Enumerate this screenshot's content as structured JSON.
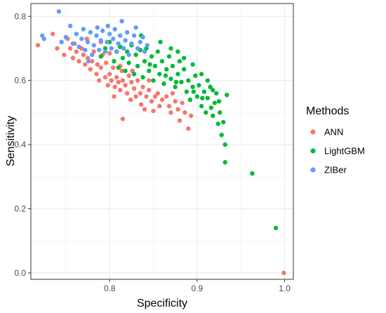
{
  "chart_data": {
    "type": "scatter",
    "title": "",
    "xlabel": "Specificity",
    "ylabel": "Sensitivity",
    "xlim": [
      0.71,
      1.01
    ],
    "ylim": [
      -0.02,
      0.84
    ],
    "x_ticks": [
      "0.8",
      "0.9",
      "1.0"
    ],
    "x_tick_values": [
      0.8,
      0.9,
      1.0
    ],
    "y_ticks": [
      "0.0",
      "0.2",
      "0.4",
      "0.6",
      "0.8"
    ],
    "y_tick_values": [
      0.0,
      0.2,
      0.4,
      0.6,
      0.8
    ],
    "grid": true,
    "legend": {
      "title": "Methods",
      "position": "right"
    },
    "series": [
      {
        "name": "ANN",
        "color": "#F8766D",
        "points": [
          [
            0.718,
            0.71
          ],
          [
            0.735,
            0.745
          ],
          [
            0.74,
            0.7
          ],
          [
            0.745,
            0.72
          ],
          [
            0.748,
            0.68
          ],
          [
            0.752,
            0.73
          ],
          [
            0.755,
            0.7
          ],
          [
            0.758,
            0.67
          ],
          [
            0.76,
            0.715
          ],
          [
            0.762,
            0.69
          ],
          [
            0.765,
            0.66
          ],
          [
            0.768,
            0.7
          ],
          [
            0.77,
            0.68
          ],
          [
            0.772,
            0.65
          ],
          [
            0.775,
            0.67
          ],
          [
            0.778,
            0.635
          ],
          [
            0.78,
            0.66
          ],
          [
            0.782,
            0.69
          ],
          [
            0.785,
            0.62
          ],
          [
            0.786,
            0.65
          ],
          [
            0.788,
            0.6
          ],
          [
            0.79,
            0.64
          ],
          [
            0.792,
            0.68
          ],
          [
            0.795,
            0.61
          ],
          [
            0.796,
            0.655
          ],
          [
            0.798,
            0.585
          ],
          [
            0.8,
            0.62
          ],
          [
            0.802,
            0.6
          ],
          [
            0.804,
            0.64
          ],
          [
            0.805,
            0.55
          ],
          [
            0.806,
            0.58
          ],
          [
            0.808,
            0.61
          ],
          [
            0.81,
            0.595
          ],
          [
            0.812,
            0.57
          ],
          [
            0.814,
            0.63
          ],
          [
            0.815,
            0.6
          ],
          [
            0.818,
            0.585
          ],
          [
            0.82,
            0.56
          ],
          [
            0.822,
            0.615
          ],
          [
            0.824,
            0.54
          ],
          [
            0.825,
            0.595
          ],
          [
            0.828,
            0.575
          ],
          [
            0.83,
            0.55
          ],
          [
            0.832,
            0.6
          ],
          [
            0.835,
            0.56
          ],
          [
            0.836,
            0.525
          ],
          [
            0.838,
            0.58
          ],
          [
            0.84,
            0.51
          ],
          [
            0.842,
            0.55
          ],
          [
            0.845,
            0.57
          ],
          [
            0.848,
            0.535
          ],
          [
            0.85,
            0.505
          ],
          [
            0.852,
            0.55
          ],
          [
            0.855,
            0.56
          ],
          [
            0.857,
            0.52
          ],
          [
            0.86,
            0.54
          ],
          [
            0.862,
            0.59
          ],
          [
            0.865,
            0.55
          ],
          [
            0.868,
            0.52
          ],
          [
            0.87,
            0.5
          ],
          [
            0.872,
            0.56
          ],
          [
            0.875,
            0.535
          ],
          [
            0.878,
            0.51
          ],
          [
            0.88,
            0.475
          ],
          [
            0.883,
            0.53
          ],
          [
            0.886,
            0.5
          ],
          [
            0.89,
            0.45
          ],
          [
            0.893,
            0.49
          ],
          [
            0.815,
            0.48
          ],
          [
            0.79,
            0.72
          ],
          [
            0.774,
            0.73
          ],
          [
            0.8,
            0.685
          ],
          [
            0.812,
            0.645
          ],
          [
            0.826,
            0.63
          ],
          [
            0.845,
            0.6
          ],
          [
            0.999,
            0.0
          ]
        ]
      },
      {
        "name": "LightGBM",
        "color": "#00BA38",
        "points": [
          [
            0.79,
            0.675
          ],
          [
            0.795,
            0.7
          ],
          [
            0.8,
            0.72
          ],
          [
            0.805,
            0.66
          ],
          [
            0.808,
            0.69
          ],
          [
            0.81,
            0.64
          ],
          [
            0.812,
            0.705
          ],
          [
            0.815,
            0.67
          ],
          [
            0.818,
            0.63
          ],
          [
            0.82,
            0.69
          ],
          [
            0.822,
            0.655
          ],
          [
            0.825,
            0.71
          ],
          [
            0.828,
            0.62
          ],
          [
            0.83,
            0.68
          ],
          [
            0.832,
            0.645
          ],
          [
            0.835,
            0.695
          ],
          [
            0.838,
            0.61
          ],
          [
            0.84,
            0.66
          ],
          [
            0.842,
            0.7
          ],
          [
            0.845,
            0.63
          ],
          [
            0.848,
            0.675
          ],
          [
            0.85,
            0.6
          ],
          [
            0.852,
            0.645
          ],
          [
            0.855,
            0.69
          ],
          [
            0.857,
            0.62
          ],
          [
            0.86,
            0.66
          ],
          [
            0.862,
            0.59
          ],
          [
            0.865,
            0.635
          ],
          [
            0.868,
            0.675
          ],
          [
            0.87,
            0.605
          ],
          [
            0.872,
            0.645
          ],
          [
            0.875,
            0.58
          ],
          [
            0.878,
            0.62
          ],
          [
            0.88,
            0.66
          ],
          [
            0.882,
            0.595
          ],
          [
            0.885,
            0.635
          ],
          [
            0.888,
            0.565
          ],
          [
            0.89,
            0.6
          ],
          [
            0.892,
            0.54
          ],
          [
            0.895,
            0.58
          ],
          [
            0.898,
            0.615
          ],
          [
            0.9,
            0.55
          ],
          [
            0.902,
            0.585
          ],
          [
            0.905,
            0.52
          ],
          [
            0.908,
            0.565
          ],
          [
            0.91,
            0.5
          ],
          [
            0.912,
            0.545
          ],
          [
            0.915,
            0.58
          ],
          [
            0.918,
            0.49
          ],
          [
            0.92,
            0.53
          ],
          [
            0.922,
            0.56
          ],
          [
            0.924,
            0.465
          ],
          [
            0.926,
            0.5
          ],
          [
            0.928,
            0.43
          ],
          [
            0.93,
            0.47
          ],
          [
            0.932,
            0.4
          ],
          [
            0.932,
            0.345
          ],
          [
            0.934,
            0.555
          ],
          [
            0.836,
            0.74
          ],
          [
            0.858,
            0.72
          ],
          [
            0.87,
            0.7
          ],
          [
            0.878,
            0.69
          ],
          [
            0.885,
            0.67
          ],
          [
            0.895,
            0.65
          ],
          [
            0.905,
            0.62
          ],
          [
            0.912,
            0.6
          ],
          [
            0.918,
            0.57
          ],
          [
            0.925,
            0.535
          ],
          [
            0.846,
            0.65
          ],
          [
            0.864,
            0.615
          ],
          [
            0.876,
            0.595
          ],
          [
            0.896,
            0.565
          ],
          [
            0.906,
            0.545
          ],
          [
            0.916,
            0.515
          ],
          [
            0.963,
            0.31
          ],
          [
            0.99,
            0.14
          ]
        ]
      },
      {
        "name": "ZIBer",
        "color": "#619CFF",
        "points": [
          [
            0.723,
            0.74
          ],
          [
            0.725,
            0.73
          ],
          [
            0.742,
            0.815
          ],
          [
            0.745,
            0.72
          ],
          [
            0.75,
            0.735
          ],
          [
            0.755,
            0.77
          ],
          [
            0.758,
            0.715
          ],
          [
            0.762,
            0.745
          ],
          [
            0.765,
            0.705
          ],
          [
            0.768,
            0.73
          ],
          [
            0.77,
            0.76
          ],
          [
            0.772,
            0.695
          ],
          [
            0.775,
            0.72
          ],
          [
            0.778,
            0.75
          ],
          [
            0.78,
            0.68
          ],
          [
            0.782,
            0.71
          ],
          [
            0.785,
            0.74
          ],
          [
            0.788,
            0.695
          ],
          [
            0.79,
            0.725
          ],
          [
            0.792,
            0.755
          ],
          [
            0.795,
            0.69
          ],
          [
            0.797,
            0.72
          ],
          [
            0.8,
            0.745
          ],
          [
            0.802,
            0.7
          ],
          [
            0.804,
            0.73
          ],
          [
            0.806,
            0.76
          ],
          [
            0.808,
            0.69
          ],
          [
            0.81,
            0.715
          ],
          [
            0.812,
            0.74
          ],
          [
            0.814,
            0.785
          ],
          [
            0.816,
            0.7
          ],
          [
            0.818,
            0.725
          ],
          [
            0.82,
            0.75
          ],
          [
            0.822,
            0.68
          ],
          [
            0.825,
            0.715
          ],
          [
            0.828,
            0.74
          ],
          [
            0.83,
            0.765
          ],
          [
            0.832,
            0.7
          ],
          [
            0.835,
            0.72
          ],
          [
            0.838,
            0.735
          ],
          [
            0.84,
            0.69
          ],
          [
            0.843,
            0.71
          ],
          [
            0.798,
            0.77
          ],
          [
            0.786,
            0.765
          ],
          [
            0.776,
            0.66
          ]
        ]
      }
    ]
  }
}
